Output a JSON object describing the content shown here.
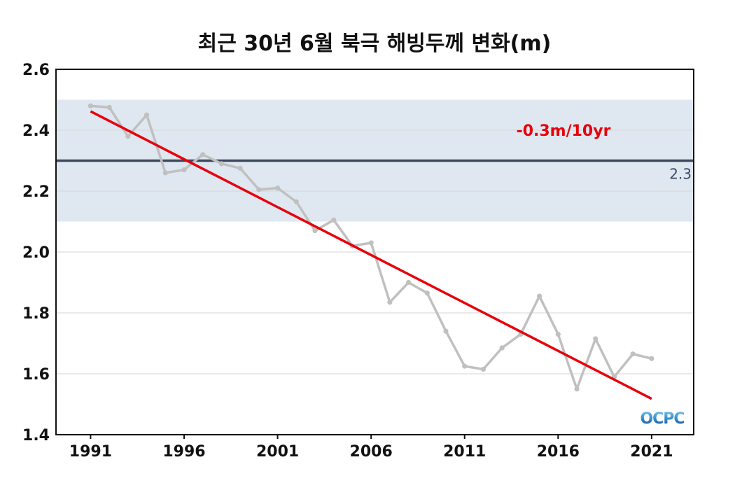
{
  "chart_data": {
    "type": "line",
    "title": "최근 30년 6월 북극 해빙두께 변화(m)",
    "x": [
      1991,
      1992,
      1993,
      1994,
      1995,
      1996,
      1997,
      1998,
      1999,
      2000,
      2001,
      2002,
      2003,
      2004,
      2005,
      2006,
      2007,
      2008,
      2009,
      2010,
      2011,
      2012,
      2013,
      2014,
      2015,
      2016,
      2017,
      2018,
      2019,
      2020,
      2021
    ],
    "series": [
      {
        "values": [
          2.48,
          2.475,
          2.38,
          2.45,
          2.26,
          2.27,
          2.32,
          2.29,
          2.275,
          2.205,
          2.21,
          2.165,
          2.07,
          2.105,
          2.02,
          2.03,
          1.835,
          1.9,
          1.865,
          1.74,
          1.625,
          1.615,
          1.685,
          1.73,
          1.855,
          1.73,
          1.55,
          1.715,
          1.59,
          1.665,
          1.65
        ],
        "color": "#c0c0c0"
      }
    ],
    "trend": {
      "start": [
        1991,
        2.462
      ],
      "end": [
        2021,
        1.518
      ],
      "color": "#e8000b",
      "label": "-0.3m/10yr"
    },
    "reference_line": {
      "value": 2.3,
      "label": "2.3",
      "color": "#3d4a5c"
    },
    "band": {
      "range": [
        2.1,
        2.5
      ],
      "color": "#dfe8f1"
    },
    "xticks": [
      1991,
      1996,
      2001,
      2006,
      2011,
      2016,
      2021
    ],
    "yticks": [
      "1.4",
      "1.6",
      "1.8",
      "2.0",
      "2.2",
      "2.4",
      "2.6"
    ],
    "xlim": [
      1989.15,
      2023.25
    ],
    "ylim": [
      1.4,
      2.6
    ],
    "grid": "horizontal"
  },
  "logo": {
    "text": "OCPC"
  }
}
